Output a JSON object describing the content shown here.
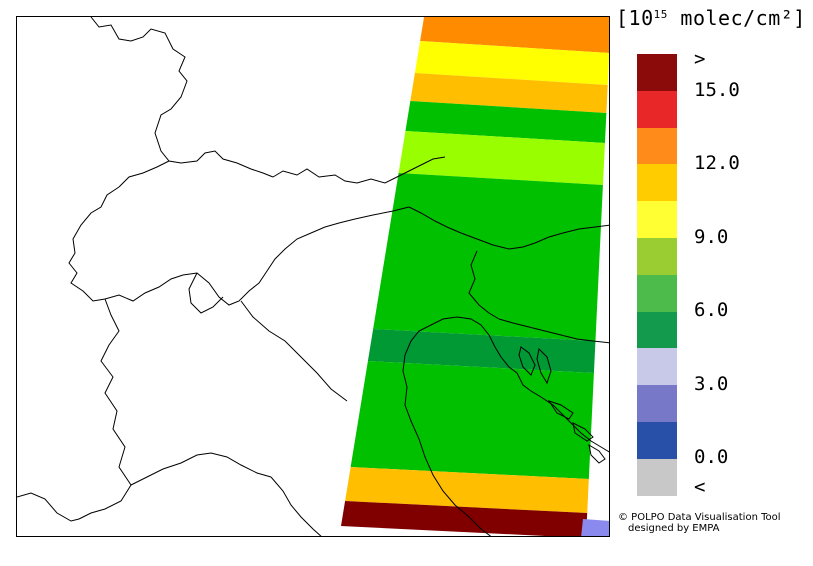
{
  "legend": {
    "unit_prefix": "[10",
    "unit_exponent": "15",
    "unit_suffix": " molec/cm²]",
    "colors": [
      "#8b0a0a",
      "#e82828",
      "#ff8c1a",
      "#ffcc00",
      "#ffff33",
      "#9acd32",
      "#4cbb4c",
      "#139a4c",
      "#c8c8e8",
      "#7878c8",
      "#2850a8",
      "#c8c8c8"
    ],
    "labels": [
      ">",
      "15.0",
      "12.0",
      "9.0",
      "6.0",
      "3.0",
      "0.0",
      "<"
    ]
  },
  "swath": {
    "bands": [
      {
        "value": 11.5,
        "color": "#ff8c00"
      },
      {
        "value": 10.0,
        "color": "#ffff00"
      },
      {
        "value": 11.2,
        "color": "#ffbf00"
      },
      {
        "value": 6.5,
        "color": "#00c000"
      },
      {
        "value": 8.5,
        "color": "#99ff00"
      },
      {
        "value": 6.5,
        "color": "#00c000"
      },
      {
        "value": 5.5,
        "color": "#009933"
      },
      {
        "value": 6.5,
        "color": "#00c000"
      },
      {
        "value": 11.2,
        "color": "#ffbf00"
      },
      {
        "value": 16.0,
        "color": "#800000"
      }
    ]
  },
  "credit": {
    "line1": "© POLPO Data Visualisation Tool",
    "line2": "designed by EMPA"
  }
}
